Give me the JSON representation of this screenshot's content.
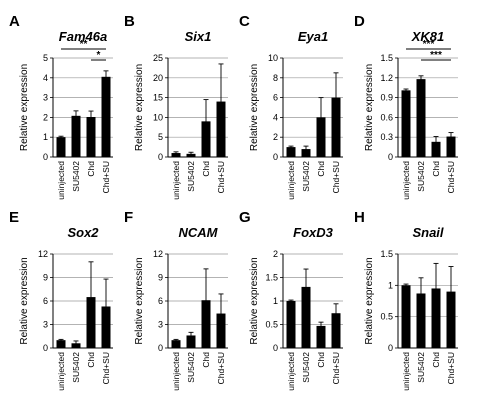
{
  "chart_data": [
    {
      "type": "bar",
      "letter": "A",
      "gene": "Fam46a",
      "ylabel": "Relative expression",
      "categories": [
        "uninjected",
        "SU5402",
        "Chd",
        "Chd+SU"
      ],
      "values": [
        1,
        2.08,
        2.02,
        4.05
      ],
      "errors": [
        0.05,
        0.25,
        0.3,
        0.3
      ],
      "ylim": [
        0,
        5
      ],
      "yticks": [
        "0",
        "1",
        "2",
        "3",
        "4",
        "5"
      ],
      "annotations": [
        {
          "label": "**",
          "from": 0,
          "to": 3
        },
        {
          "label": "*",
          "from": 2,
          "to": 3
        }
      ]
    },
    {
      "type": "bar",
      "letter": "B",
      "gene": "Six1",
      "ylabel": "Relative expression",
      "categories": [
        "uninjected",
        "SU5402",
        "Chd",
        "Chd+SU"
      ],
      "values": [
        1,
        0.8,
        9,
        14
      ],
      "errors": [
        0.3,
        0.4,
        5.5,
        9.5
      ],
      "ylim": [
        0,
        25
      ],
      "yticks": [
        "0",
        "5",
        "10",
        "15",
        "20",
        "25"
      ],
      "annotations": []
    },
    {
      "type": "bar",
      "letter": "C",
      "gene": "Eya1",
      "ylabel": "Relative expression",
      "categories": [
        "uninjected",
        "SU5402",
        "Chd",
        "Chd+SU"
      ],
      "values": [
        1,
        0.8,
        4,
        6
      ],
      "errors": [
        0.1,
        0.3,
        2,
        2.5
      ],
      "ylim": [
        0,
        10
      ],
      "yticks": [
        "0",
        "2",
        "4",
        "6",
        "8",
        "10"
      ],
      "annotations": []
    },
    {
      "type": "bar",
      "letter": "D",
      "gene": "XK81",
      "ylabel": "Relative expression",
      "categories": [
        "uninjected",
        "SU5402",
        "Chd",
        "Chd+SU"
      ],
      "values": [
        1.01,
        1.18,
        0.23,
        0.31
      ],
      "errors": [
        0.02,
        0.05,
        0.08,
        0.06
      ],
      "ylim": [
        0,
        1.5
      ],
      "yticks": [
        "0",
        "0.3",
        "0.6",
        "0.9",
        "1.2",
        "1.5"
      ],
      "annotations": [
        {
          "label": "***",
          "from": 0,
          "to": 3
        },
        {
          "label": "***",
          "from": 1,
          "to": 3
        }
      ]
    },
    {
      "type": "bar",
      "letter": "E",
      "gene": "Sox2",
      "ylabel": "Relative expression",
      "categories": [
        "uninjected",
        "SU5402",
        "Chd",
        "Chd+SU"
      ],
      "values": [
        1,
        0.6,
        6.5,
        5.3
      ],
      "errors": [
        0.1,
        0.3,
        4.5,
        3.5
      ],
      "ylim": [
        0,
        12
      ],
      "yticks": [
        "0",
        "3",
        "6",
        "9",
        "12"
      ],
      "annotations": []
    },
    {
      "type": "bar",
      "letter": "F",
      "gene": "NCAM",
      "ylabel": "Relative expression",
      "categories": [
        "uninjected",
        "SU5402",
        "Chd",
        "Chd+SU"
      ],
      "values": [
        1,
        1.6,
        6.1,
        4.4
      ],
      "errors": [
        0.1,
        0.4,
        4,
        2.5
      ],
      "ylim": [
        0,
        12
      ],
      "yticks": [
        "0",
        "3",
        "6",
        "9",
        "12"
      ],
      "annotations": []
    },
    {
      "type": "bar",
      "letter": "G",
      "gene": "FoxD3",
      "ylabel": "Relative expression",
      "categories": [
        "uninjected",
        "SU5402",
        "Chd",
        "Chd+SU"
      ],
      "values": [
        1,
        1.3,
        0.47,
        0.74
      ],
      "errors": [
        0.02,
        0.38,
        0.08,
        0.2
      ],
      "ylim": [
        0,
        2
      ],
      "yticks": [
        "0",
        "0.5",
        "1",
        "1.5",
        "2"
      ],
      "annotations": []
    },
    {
      "type": "bar",
      "letter": "H",
      "gene": "Snail",
      "ylabel": "Relative expression",
      "categories": [
        "uninjected",
        "SU5402",
        "Chd",
        "Chd+SU"
      ],
      "values": [
        1,
        0.87,
        0.95,
        0.9
      ],
      "errors": [
        0.02,
        0.25,
        0.4,
        0.4
      ],
      "ylim": [
        0,
        1.5
      ],
      "yticks": [
        "0",
        "0.5",
        "1",
        "1.5"
      ],
      "annotations": []
    }
  ]
}
